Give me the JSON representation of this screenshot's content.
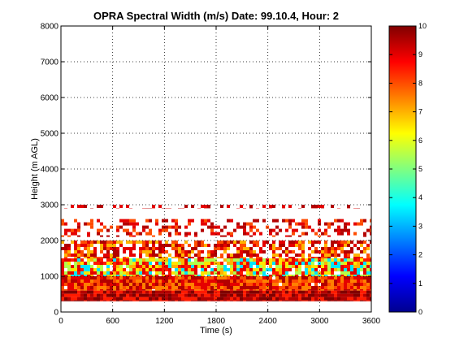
{
  "chart_data": {
    "type": "heatmap",
    "title": "OPRA Spectral Width (m/s)  Date: 99.10.4, Hour: 2",
    "xlabel": "Time (s)",
    "ylabel": "Height (m AGL)",
    "xlim": [
      0,
      3600
    ],
    "ylim": [
      0,
      8000
    ],
    "xticks": [
      "0",
      "600",
      "1200",
      "1800",
      "2400",
      "3000",
      "3600"
    ],
    "yticks": [
      "0",
      "1000",
      "2000",
      "3000",
      "4000",
      "5000",
      "6000",
      "7000",
      "8000"
    ],
    "grid": true,
    "colorbar": {
      "min": 0,
      "max": 10,
      "ticks": [
        "0",
        "1",
        "2",
        "3",
        "4",
        "5",
        "6",
        "7",
        "8",
        "9",
        "10"
      ],
      "colormap": "jet"
    },
    "layers": [
      {
        "height_min": 300,
        "height_max": 600,
        "width_values": [
          9.5,
          8.5,
          10
        ],
        "coverage": 1.0
      },
      {
        "height_min": 600,
        "height_max": 1000,
        "width_values": [
          9.0,
          8.0,
          9.5,
          7.5
        ],
        "coverage": 0.98
      },
      {
        "height_min": 1000,
        "height_max": 1500,
        "width_values": [
          8.5,
          7.0,
          6.5,
          5.5,
          3.5,
          9.0
        ],
        "coverage": 0.9
      },
      {
        "height_min": 1500,
        "height_max": 2000,
        "width_values": [
          9.0,
          8.0,
          7.0,
          9.5
        ],
        "coverage": 0.65
      },
      {
        "height_min": 2100,
        "height_max": 2600,
        "width_values": [
          9.5,
          9.0,
          8.0
        ],
        "coverage": 0.35
      },
      {
        "height_min": 2900,
        "height_max": 3000,
        "width_values": [
          9.5,
          9.0
        ],
        "coverage": 0.3
      }
    ]
  }
}
